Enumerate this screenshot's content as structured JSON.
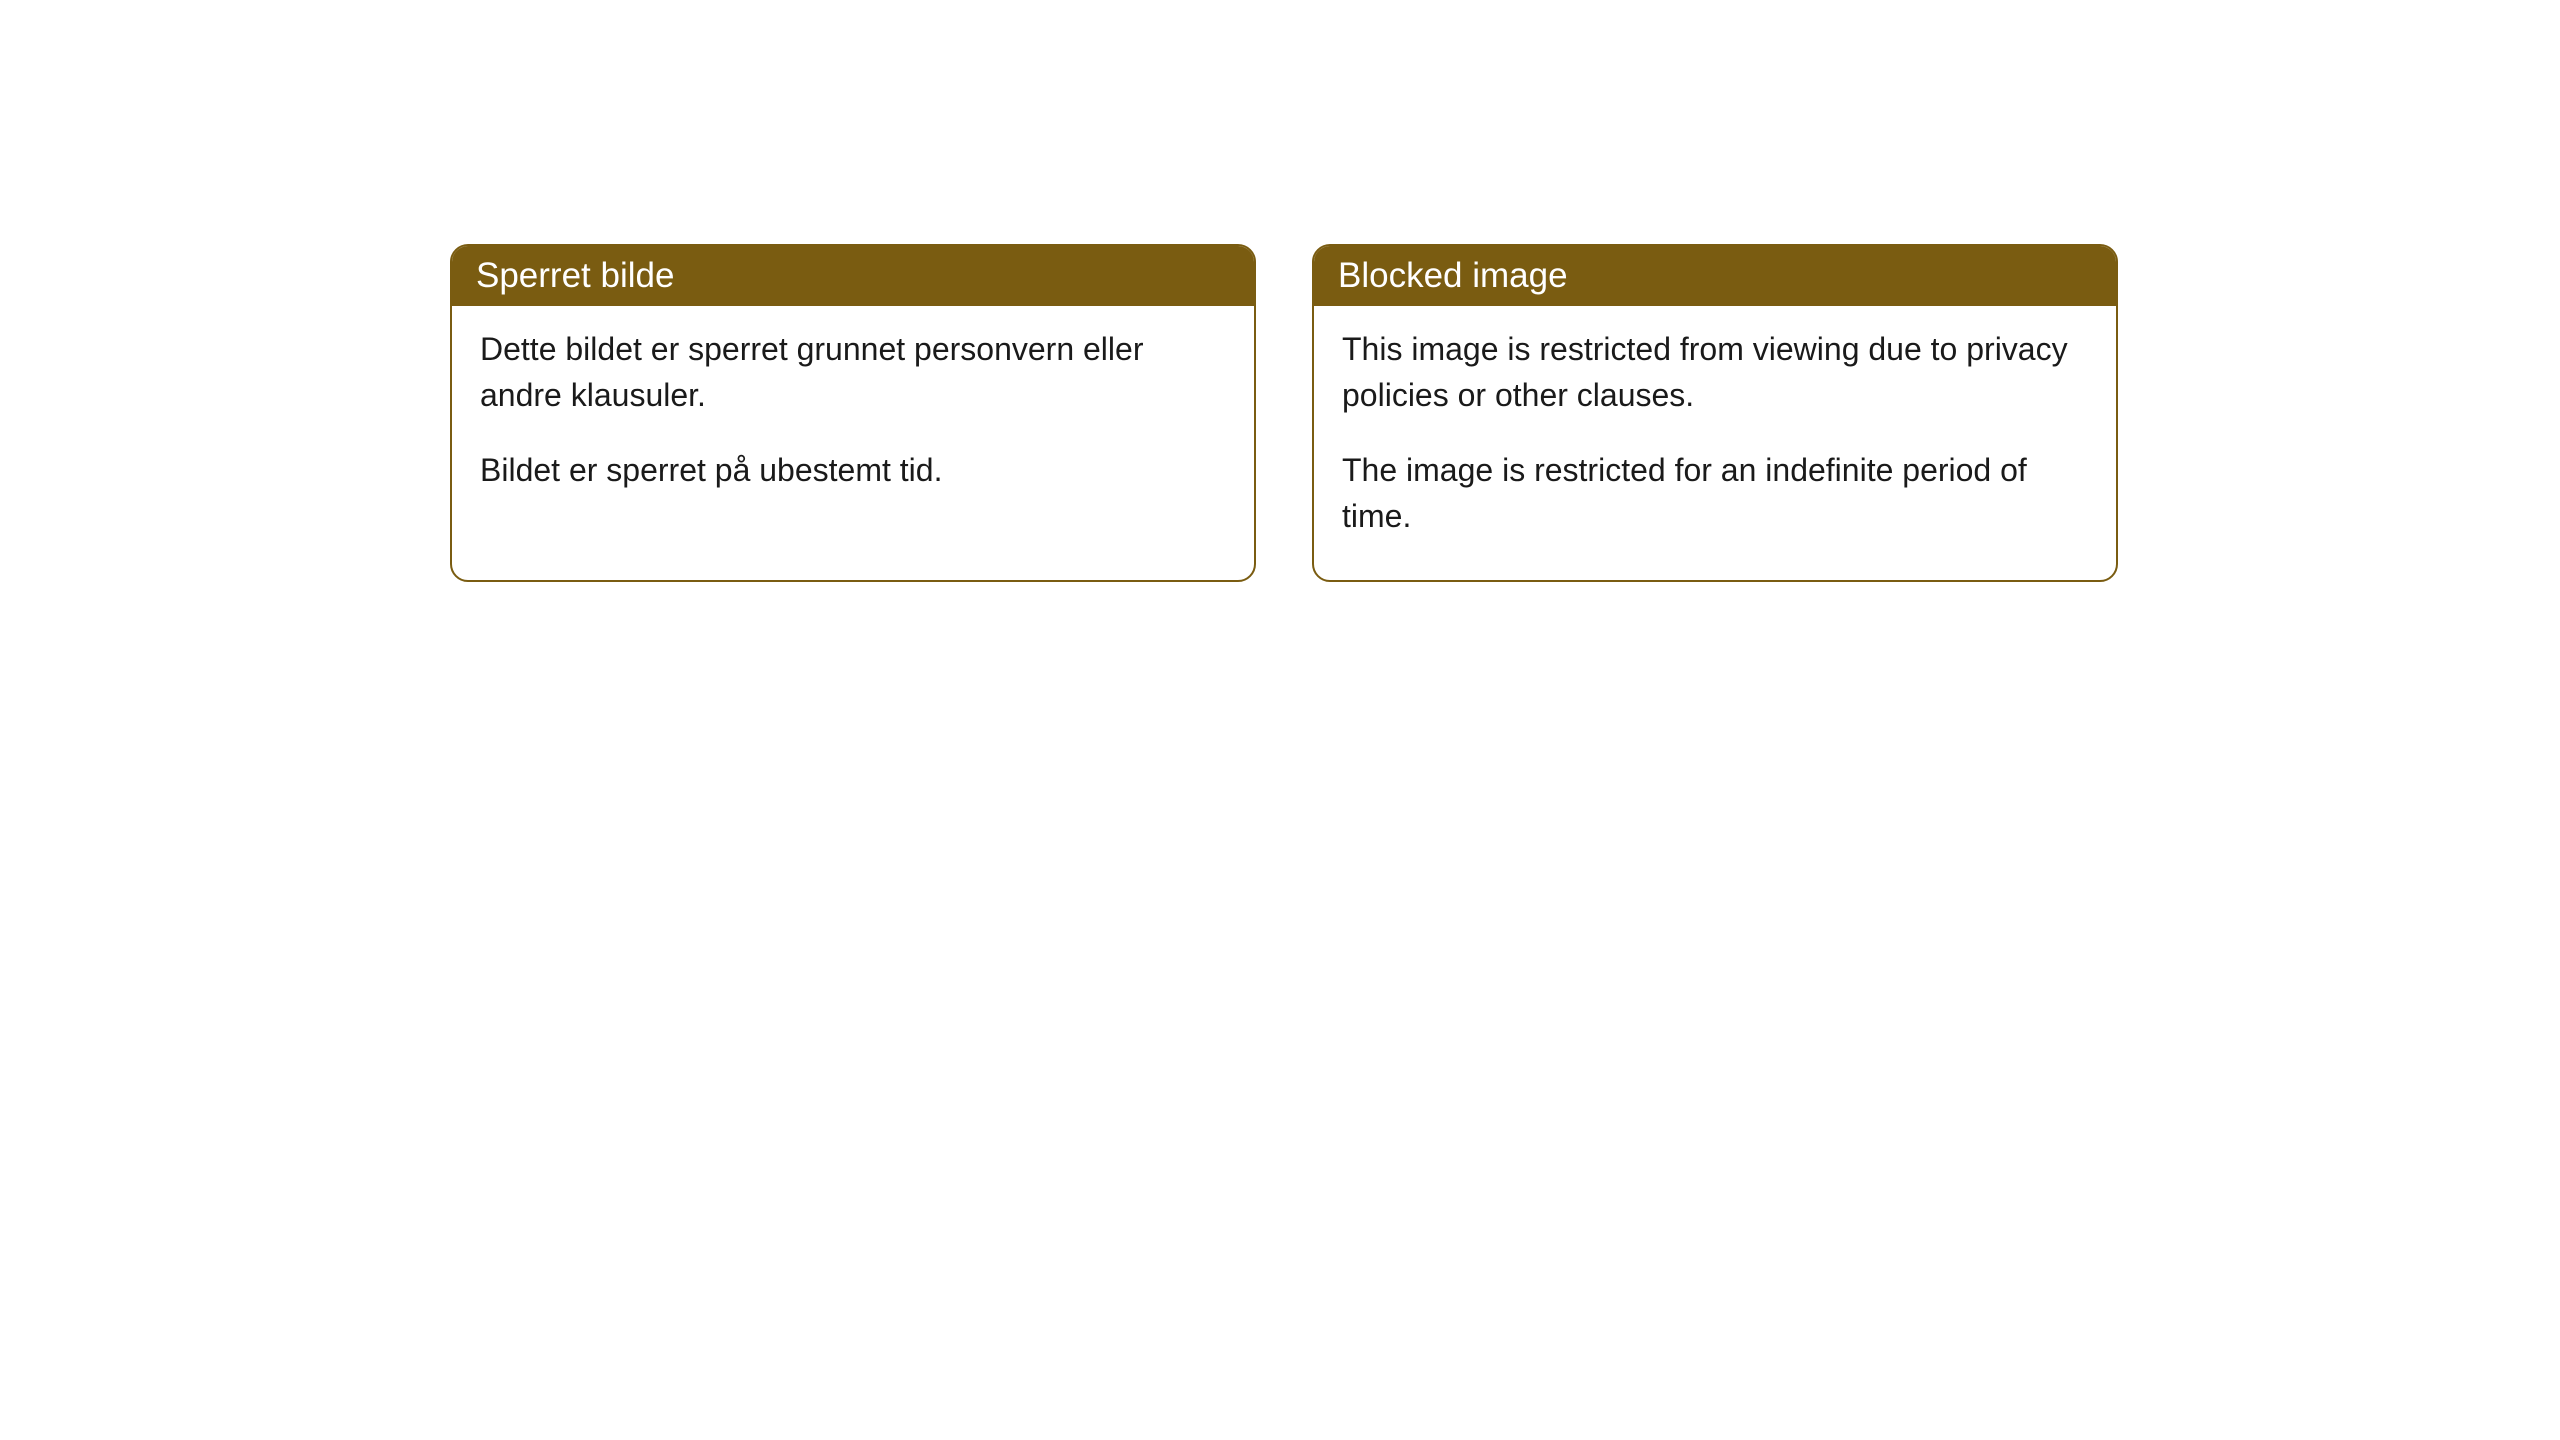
{
  "cards": [
    {
      "title": "Sperret bilde",
      "paragraph1": "Dette bildet er sperret grunnet personvern eller andre klausuler.",
      "paragraph2": "Bildet er sperret på ubestemt tid."
    },
    {
      "title": "Blocked image",
      "paragraph1": "This image is restricted from viewing due to privacy policies or other clauses.",
      "paragraph2": "The image is restricted for an indefinite period of time."
    }
  ],
  "style": {
    "header_bg_color": "#7a5c11",
    "header_text_color": "#ffffff",
    "border_color": "#7a5c11",
    "body_bg_color": "#ffffff",
    "body_text_color": "#1a1a1a",
    "border_radius": 18,
    "title_fontsize": 35,
    "body_fontsize": 32
  }
}
